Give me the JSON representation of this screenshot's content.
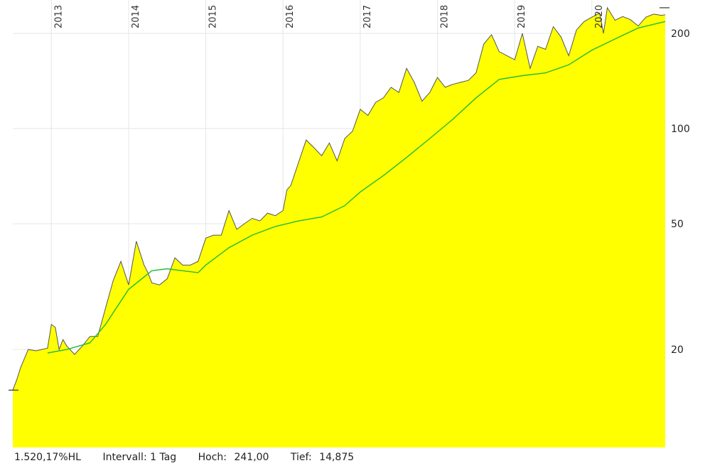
{
  "chart_data": {
    "type": "area",
    "title": "",
    "xlabel": "",
    "ylabel": "",
    "y_scale": "log",
    "ylim": [
      9.8,
      255
    ],
    "xlim": [
      2012.5,
      2020.95
    ],
    "x_ticks": [
      "2013",
      "2014",
      "2015",
      "2016",
      "2017",
      "2018",
      "2019",
      "2020"
    ],
    "y_ticks": [
      20,
      50,
      100,
      200
    ],
    "grid": true,
    "colors": {
      "area": "#ffff00",
      "price_line": "#555555",
      "moving_average": "#22bb33"
    },
    "series": [
      {
        "name": "",
        "x": [
          2012.5,
          2012.55,
          2012.6,
          2012.7,
          2012.8,
          2012.95,
          2013.0,
          2013.05,
          2013.1,
          2013.15,
          2013.2,
          2013.3,
          2013.4,
          2013.5,
          2013.6,
          2013.7,
          2013.8,
          2013.9,
          2014.0,
          2014.1,
          2014.2,
          2014.25,
          2014.3,
          2014.4,
          2014.5,
          2014.6,
          2014.7,
          2014.8,
          2014.9,
          2015.0,
          2015.1,
          2015.2,
          2015.3,
          2015.4,
          2015.5,
          2015.6,
          2015.7,
          2015.8,
          2015.9,
          2016.0,
          2016.05,
          2016.1,
          2016.2,
          2016.3,
          2016.4,
          2016.5,
          2016.6,
          2016.7,
          2016.8,
          2016.9,
          2017.0,
          2017.1,
          2017.2,
          2017.3,
          2017.4,
          2017.5,
          2017.6,
          2017.7,
          2017.8,
          2017.9,
          2018.0,
          2018.1,
          2018.2,
          2018.3,
          2018.4,
          2018.5,
          2018.6,
          2018.7,
          2018.8,
          2018.9,
          2019.0,
          2019.1,
          2019.2,
          2019.3,
          2019.4,
          2019.5,
          2019.6,
          2019.7,
          2019.8,
          2019.9,
          2020.0,
          2020.1,
          2020.15,
          2020.2,
          2020.3,
          2020.4,
          2020.5,
          2020.6,
          2020.7,
          2020.8,
          2020.9,
          2020.95
        ],
        "values": [
          14.875,
          16.0,
          17.5,
          20.0,
          19.8,
          20.2,
          24.0,
          23.5,
          20.0,
          21.5,
          20.5,
          19.3,
          20.5,
          22.0,
          22.0,
          27.0,
          33.0,
          38.0,
          32.0,
          44.0,
          37.0,
          35.0,
          32.5,
          32.0,
          33.5,
          39.0,
          37.0,
          37.0,
          38.0,
          45.0,
          46.0,
          46.0,
          55.0,
          48.0,
          50.0,
          52.0,
          51.0,
          54.0,
          53.0,
          55.0,
          64.0,
          66.0,
          78.0,
          92.0,
          87.0,
          82.0,
          90.0,
          79.0,
          93.0,
          98.0,
          115.0,
          110.0,
          121.0,
          125.0,
          135.0,
          130.0,
          155.0,
          140.0,
          122.0,
          130.0,
          145.0,
          135.0,
          138.0,
          140.0,
          142.0,
          150.0,
          185.0,
          198.0,
          175.0,
          170.0,
          165.0,
          200.0,
          155.0,
          182.0,
          178.0,
          210.0,
          195.0,
          170.0,
          205.0,
          218.0,
          225.0,
          232.0,
          200.0,
          241.0,
          220.0,
          226.0,
          221.0,
          211.0,
          225.0,
          230.0,
          228.0,
          229.0
        ]
      },
      {
        "name": "",
        "x": [
          2012.95,
          2013.2,
          2013.5,
          2013.7,
          2014.0,
          2014.3,
          2014.5,
          2014.7,
          2014.9,
          2015.0,
          2015.3,
          2015.6,
          2015.9,
          2016.2,
          2016.5,
          2016.8,
          2017.0,
          2017.3,
          2017.6,
          2017.9,
          2018.2,
          2018.5,
          2018.8,
          2019.1,
          2019.4,
          2019.7,
          2020.0,
          2020.3,
          2020.6,
          2020.95
        ],
        "values": [
          19.5,
          20.0,
          21.0,
          24.0,
          31.0,
          35.5,
          36.0,
          35.5,
          35.0,
          37.0,
          42.0,
          46.0,
          49.0,
          51.0,
          52.5,
          57.0,
          63.0,
          71.0,
          81.0,
          93.0,
          107.0,
          125.0,
          143.0,
          147.0,
          150.0,
          159.0,
          177.0,
          192.0,
          208.0,
          218.0
        ]
      }
    ],
    "annotations": [
      "1.520,17%HL",
      "Intervall: 1 Tag",
      "Hoch:",
      "241,00",
      "Tief:",
      "14,875"
    ]
  }
}
